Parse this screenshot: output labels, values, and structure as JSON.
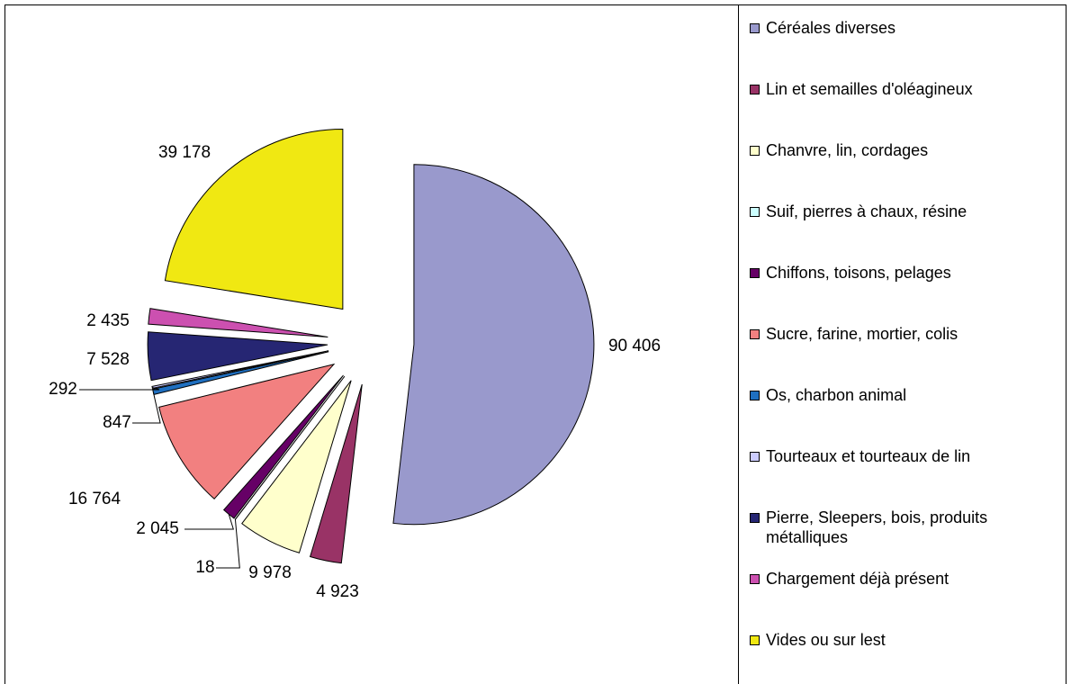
{
  "chart_data": {
    "type": "pie",
    "categories": [
      "Céréales diverses",
      "Lin et semailles d'oléagineux",
      "Chanvre, lin, cordages",
      "Suif, pierres à chaux, résine",
      "Chiffons, toisons, pelages",
      "Sucre, farine, mortier, colis",
      "Os, charbon animal",
      "Tourteaux et tourteaux de lin",
      "Pierre, Sleepers, bois, produits métalliques",
      "Chargement déjà présent",
      "Vides ou sur lest"
    ],
    "values": [
      90406,
      4923,
      9978,
      18,
      2045,
      16764,
      847,
      292,
      7528,
      2435,
      39178
    ],
    "value_labels": [
      "90 406",
      "4 923",
      "9 978",
      "18",
      "2 045",
      "16 764",
      "847",
      "292",
      "7 528",
      "2 435",
      "39 178"
    ],
    "colors": [
      "#9999cc",
      "#993366",
      "#ffffcc",
      "#ccffff",
      "#660066",
      "#f28080",
      "#1f6fc0",
      "#ccccff",
      "#262673",
      "#cc50b0",
      "#f0e812"
    ],
    "legend": "right"
  }
}
